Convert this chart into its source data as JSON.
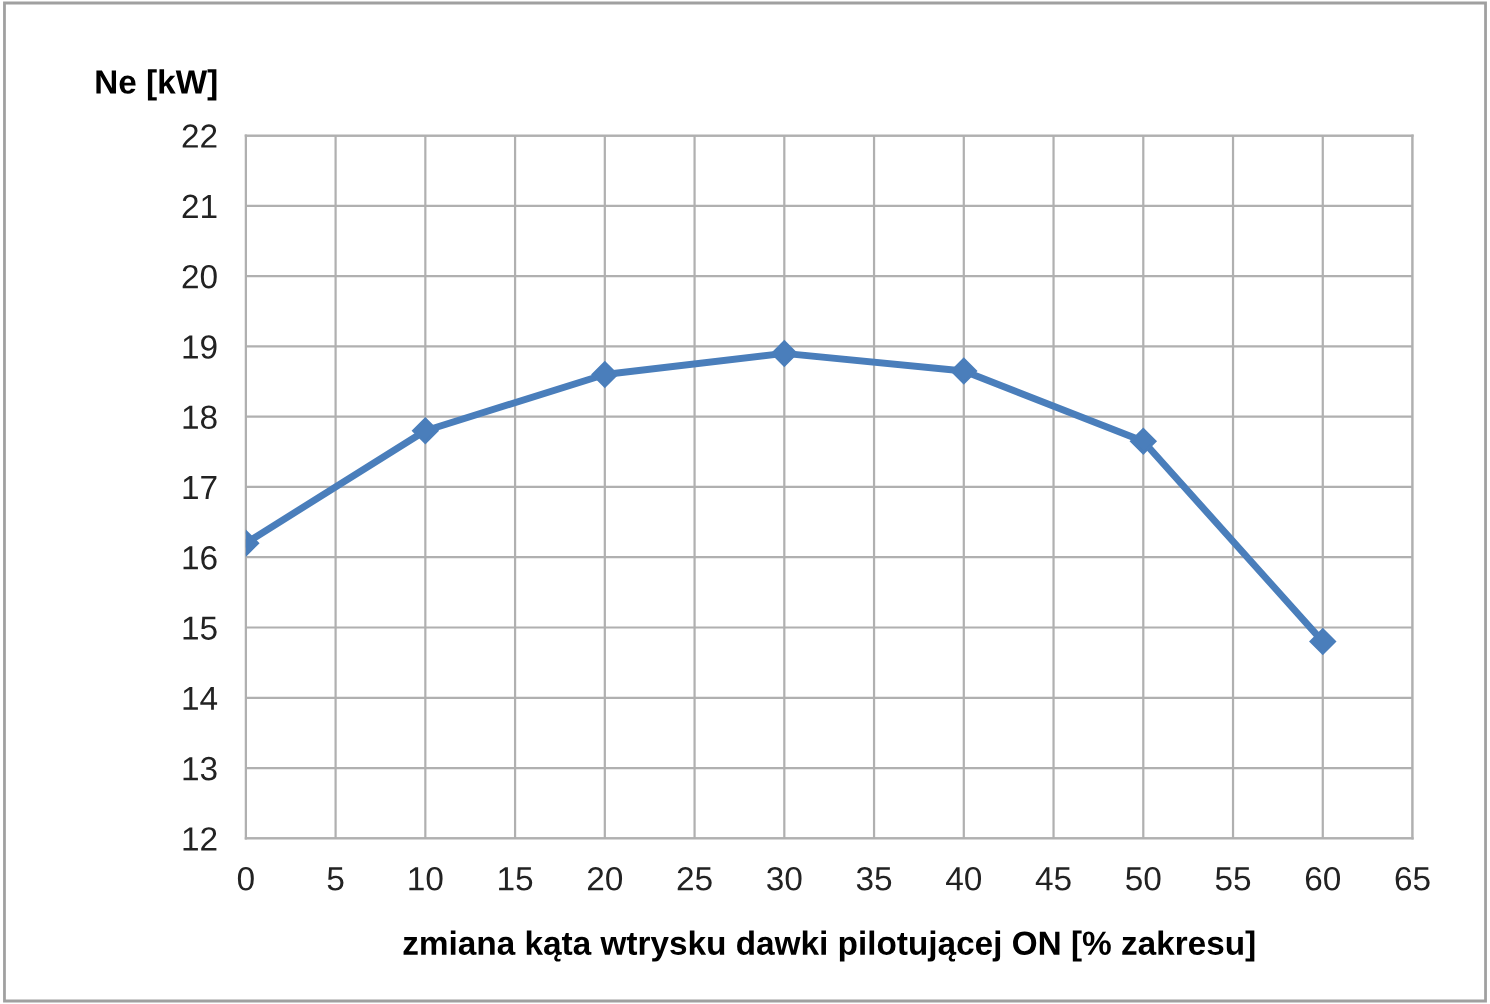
{
  "chart_data": {
    "type": "line",
    "xlabel": "zmiana kąta wtrysku dawki pilotującej ON [% zakresu]",
    "ylabel": "Ne [kW]",
    "x": [
      0,
      10,
      20,
      30,
      40,
      50,
      60
    ],
    "series": [
      {
        "color": "#4a7ebb",
        "values": [
          16.2,
          17.8,
          18.6,
          18.9,
          18.65,
          17.65,
          14.8
        ]
      }
    ],
    "xlim": [
      0,
      65
    ],
    "xticks": [
      0,
      5,
      10,
      15,
      20,
      25,
      30,
      35,
      40,
      45,
      50,
      55,
      60,
      65
    ],
    "ylim": [
      12,
      22
    ],
    "yticks": [
      12,
      13,
      14,
      15,
      16,
      17,
      18,
      19,
      20,
      21,
      22
    ],
    "grid": true,
    "marker": "diamond",
    "line_style": "solid",
    "legend": false
  }
}
